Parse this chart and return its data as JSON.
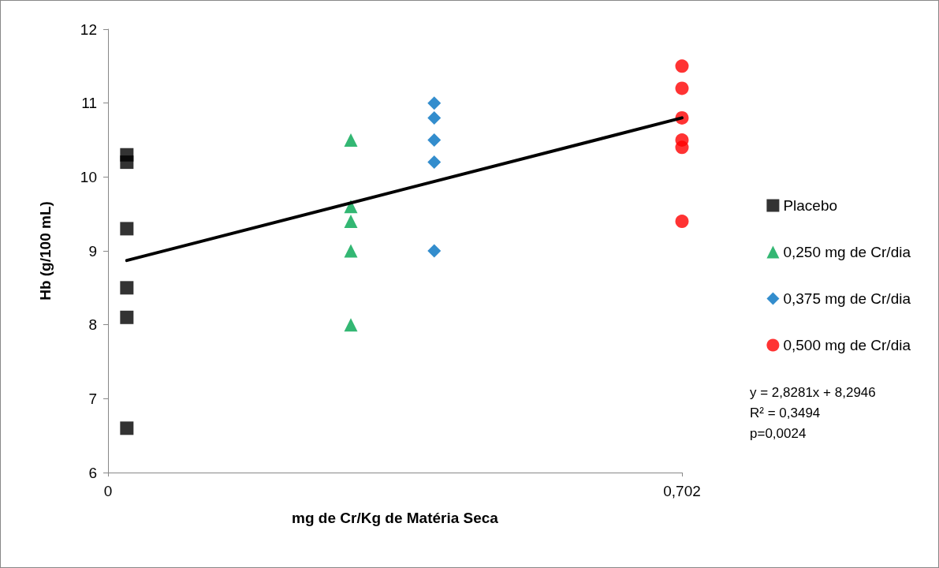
{
  "chart_data": {
    "type": "scatter",
    "xlabel": "mg de Cr/Kg de Matéria Seca",
    "ylabel": "Hb (g/100 mL)",
    "xlim": [
      0,
      0.702
    ],
    "xticks": [
      0,
      {
        "value": 0.702,
        "label": "0,702"
      }
    ],
    "ylim": [
      6,
      12
    ],
    "yticks": [
      6,
      7,
      8,
      9,
      10,
      11,
      12
    ],
    "grid": false,
    "legend": "right",
    "series": [
      {
        "name": "Placebo",
        "color": "#000000",
        "marker": "square",
        "x": [
          0.023,
          0.023,
          0.023,
          0.023,
          0.023,
          0.023
        ],
        "values": [
          10.3,
          10.2,
          9.3,
          8.5,
          8.1,
          6.6
        ]
      },
      {
        "name": "0,250 mg de Cr/dia",
        "color": "#00a550",
        "marker": "triangle",
        "x": [
          0.297,
          0.297,
          0.297,
          0.297,
          0.297
        ],
        "values": [
          10.5,
          9.6,
          9.4,
          9.0,
          8.0
        ]
      },
      {
        "name": "0,375 mg de Cr/dia",
        "color": "#0070c0",
        "marker": "diamond",
        "x": [
          0.399,
          0.399,
          0.399,
          0.399,
          0.399
        ],
        "values": [
          11.0,
          10.8,
          10.5,
          10.2,
          9.0
        ]
      },
      {
        "name": "0,500 mg de Cr/dia",
        "color": "#ff0000",
        "marker": "circle",
        "x": [
          0.702,
          0.702,
          0.702,
          0.702,
          0.702,
          0.702
        ],
        "values": [
          11.5,
          11.2,
          10.8,
          10.5,
          10.4,
          9.4
        ]
      },
      {
        "type": "line",
        "color": "#000000",
        "marker": "none",
        "line_style": "solid",
        "x": [
          0.023,
          0.702
        ],
        "values": [
          8.87,
          10.8
        ]
      }
    ],
    "annotations": [
      "y = 2,8281x + 8,2946",
      "R² = 0,3494",
      "p=0,0024"
    ]
  }
}
